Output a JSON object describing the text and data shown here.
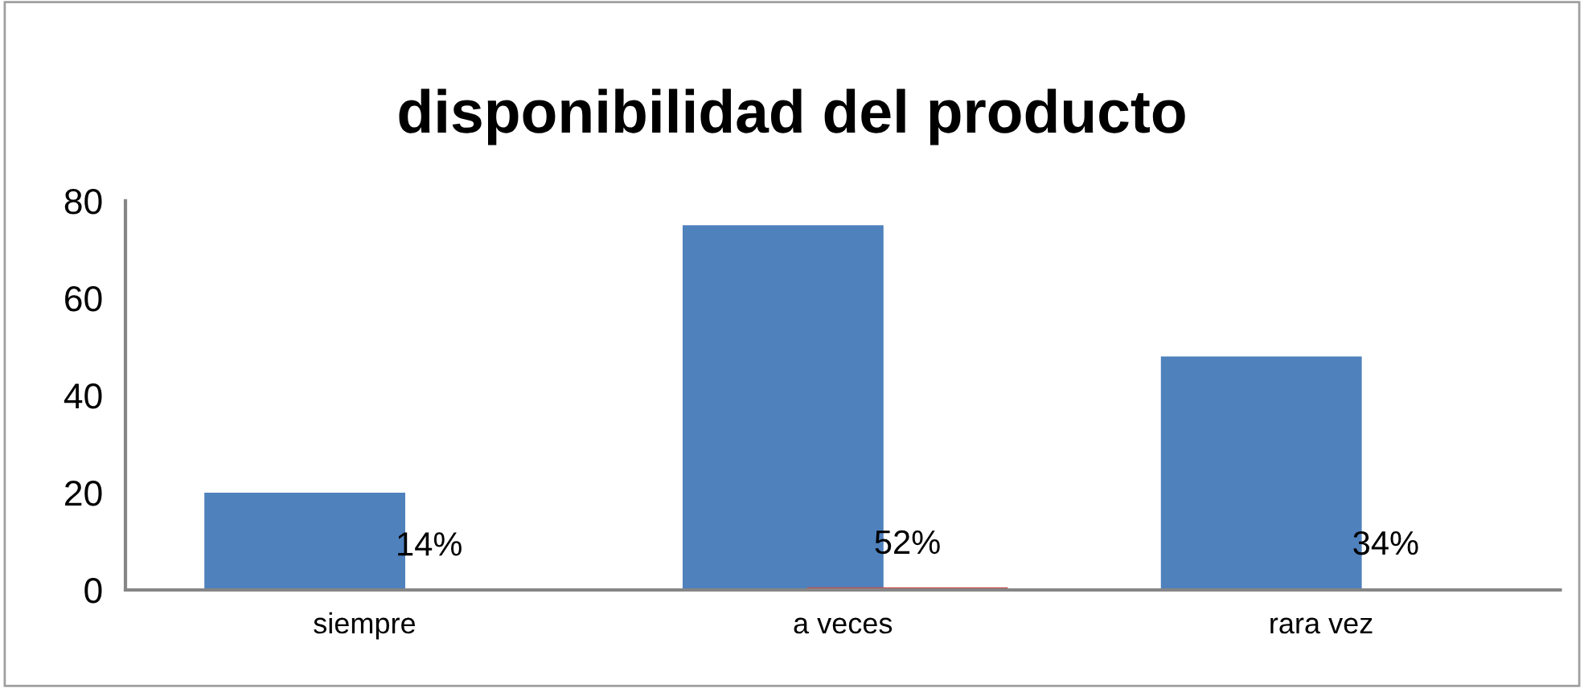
{
  "chart_data": {
    "type": "bar",
    "title": "disponibilidad del producto",
    "categories": [
      "siempre",
      "a veces",
      "rara vez"
    ],
    "series": [
      {
        "color": "#4f81bd",
        "values": [
          20,
          75,
          48
        ]
      },
      {
        "color": "#c0504d",
        "values": [
          0.14,
          0.52,
          0.34
        ],
        "value_labels": [
          "14%",
          "52%",
          "34%"
        ]
      }
    ],
    "ylim": [
      0,
      80
    ],
    "yticks": [
      0,
      20,
      40,
      60,
      80
    ],
    "grid": false,
    "legend": false
  }
}
